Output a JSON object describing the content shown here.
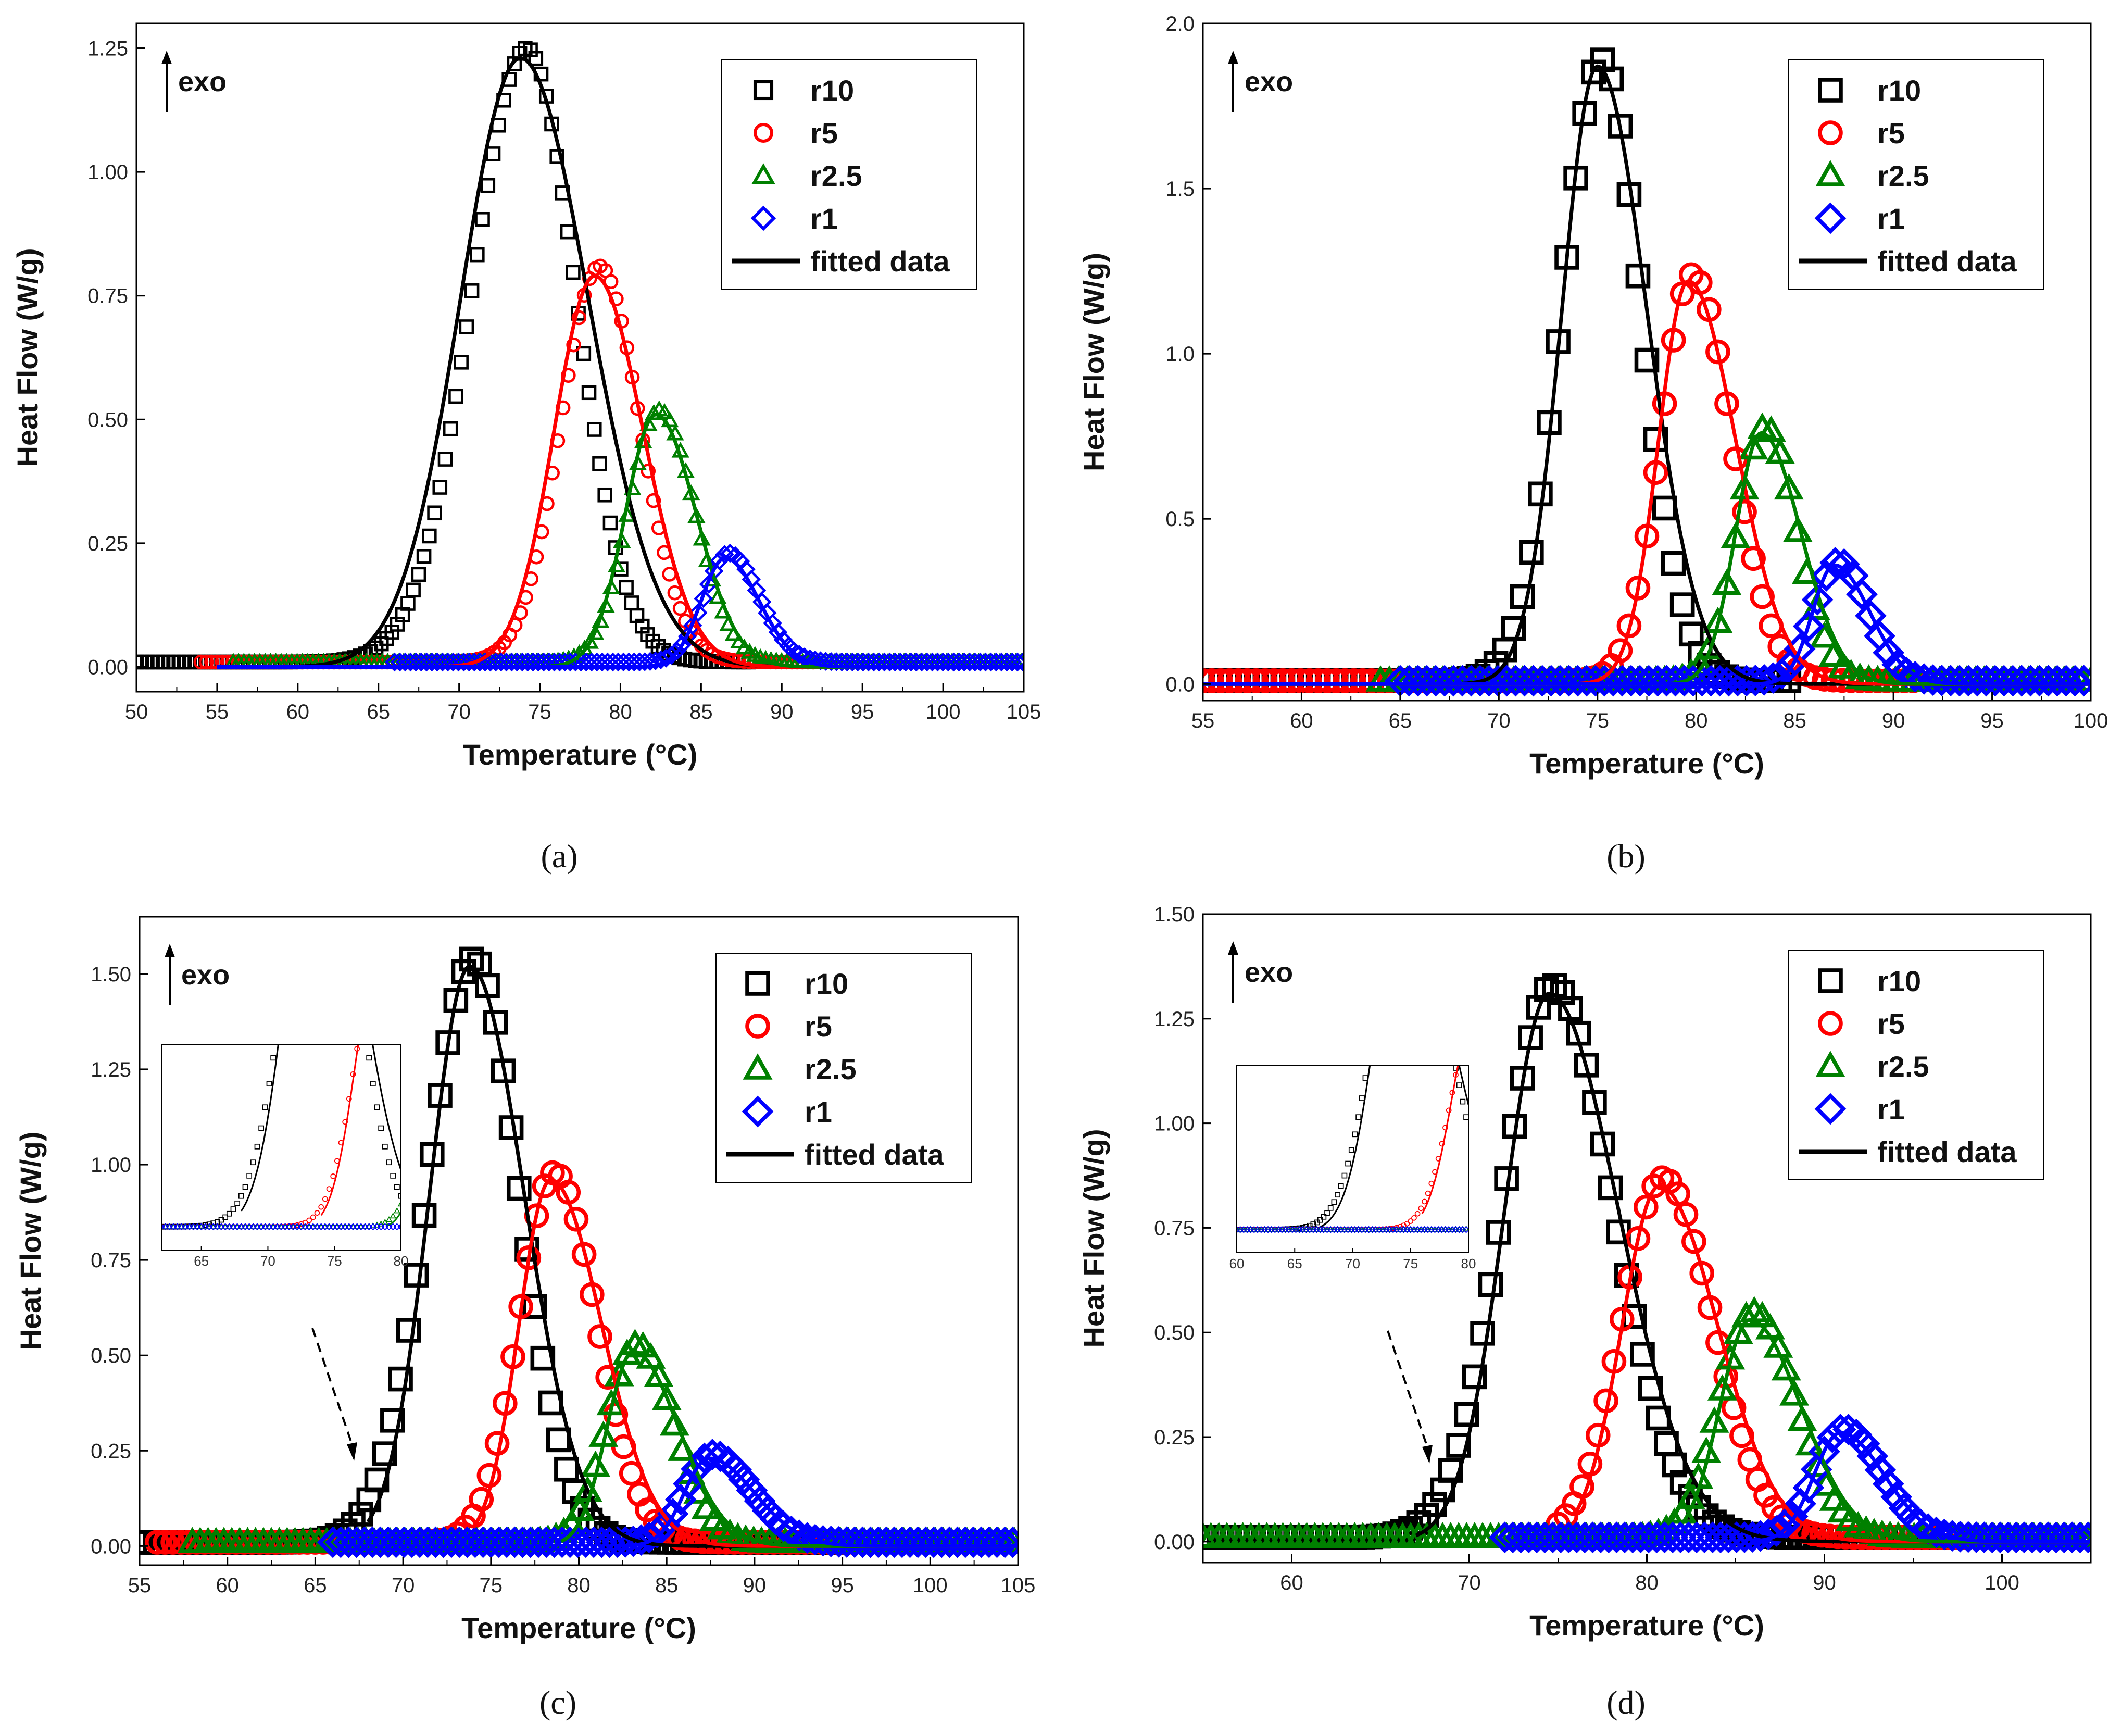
{
  "figure": {
    "panels": [
      "a",
      "b",
      "c",
      "d"
    ]
  },
  "chart_data": [
    {
      "id": "a",
      "type": "scatter",
      "caption": "(a)",
      "xlabel": "Temperature (°C)",
      "ylabel": "Heat Flow (W/g)",
      "xlim": [
        50,
        105
      ],
      "ylim": [
        -0.05,
        1.3
      ],
      "xticks": [
        50,
        55,
        60,
        65,
        70,
        75,
        80,
        85,
        90,
        95,
        100,
        105
      ],
      "yticks": [
        0.0,
        0.25,
        0.5,
        0.75,
        1.0,
        1.25
      ],
      "yticklabels": [
        "0.00",
        "0.25",
        "0.50",
        "0.75",
        "1.00",
        "1.25"
      ],
      "annotation": "exo",
      "legend": [
        "r10",
        "r5",
        "r2.5",
        "r1",
        "fitted data"
      ],
      "legend_position": "top-right",
      "marker_size": "small",
      "series": [
        {
          "name": "r10",
          "marker": "square",
          "color": "#000000",
          "peak_x": 74.2,
          "peak_y": 1.24,
          "sigma_left": 3.4,
          "sigma_right": 3.0,
          "x_range": [
            50,
            88
          ],
          "fit_peak_x": 73.8,
          "fit_peak_y": 1.23,
          "fit_sigma_left": 3.7,
          "fit_sigma_right": 4.2,
          "fit_x_range": [
            55,
            105
          ]
        },
        {
          "name": "r5",
          "marker": "circle",
          "color": "#ff0000",
          "peak_x": 78.7,
          "peak_y": 0.8,
          "sigma_left": 2.4,
          "sigma_right": 2.5,
          "x_range": [
            54,
            92
          ],
          "fit_peak_x": 78.4,
          "fit_peak_y": 0.79,
          "fit_sigma_left": 2.5,
          "fit_sigma_right": 3.0,
          "fit_x_range": [
            55,
            105
          ]
        },
        {
          "name": "r2.5",
          "marker": "triangle",
          "color": "#008000",
          "peak_x": 82.4,
          "peak_y": 0.51,
          "sigma_left": 1.9,
          "sigma_right": 2.2,
          "x_range": [
            56,
            105
          ],
          "fit_peak_x": 82.2,
          "fit_peak_y": 0.51,
          "fit_sigma_left": 1.9,
          "fit_sigma_right": 2.5,
          "fit_x_range": [
            55,
            105
          ]
        },
        {
          "name": "r1",
          "marker": "diamond",
          "color": "#0000ff",
          "peak_x": 86.7,
          "peak_y": 0.22,
          "sigma_left": 1.5,
          "sigma_right": 1.9,
          "x_range": [
            66,
            105
          ],
          "fit_peak_x": 86.5,
          "fit_peak_y": 0.22,
          "fit_sigma_left": 1.5,
          "fit_sigma_right": 2.1,
          "fit_x_range": [
            55,
            105
          ]
        }
      ]
    },
    {
      "id": "b",
      "type": "scatter",
      "caption": "(b)",
      "xlabel": "Temperature (°C)",
      "ylabel": "Heat Flow (W/g)",
      "xlim": [
        55,
        100
      ],
      "ylim": [
        -0.05,
        2.0
      ],
      "xticks": [
        55,
        60,
        65,
        70,
        75,
        80,
        85,
        90,
        95,
        100
      ],
      "yticks": [
        0.0,
        0.5,
        1.0,
        1.5,
        2.0
      ],
      "yticklabels": [
        "0.0",
        "0.5",
        "1.0",
        "1.5",
        "2.0"
      ],
      "annotation": "exo",
      "legend": [
        "r10",
        "r5",
        "r2.5",
        "r1",
        "fitted data"
      ],
      "legend_position": "top-right",
      "marker_size": "large",
      "series": [
        {
          "name": "r10",
          "marker": "square",
          "color": "#000000",
          "peak_x": 75.2,
          "peak_y": 1.88,
          "sigma_left": 2.0,
          "sigma_right": 2.0,
          "x_range": [
            55,
            85
          ],
          "fit_peak_x": 75.0,
          "fit_peak_y": 1.87,
          "fit_sigma_left": 1.8,
          "fit_sigma_right": 2.5,
          "fit_x_range": [
            55,
            100
          ]
        },
        {
          "name": "r5",
          "marker": "circle",
          "color": "#ff0000",
          "peak_x": 79.8,
          "peak_y": 1.23,
          "sigma_left": 1.6,
          "sigma_right": 2.0,
          "x_range": [
            55,
            91
          ],
          "fit_peak_x": 79.6,
          "fit_peak_y": 1.22,
          "fit_sigma_left": 1.5,
          "fit_sigma_right": 2.4,
          "fit_x_range": [
            55,
            100
          ]
        },
        {
          "name": "r2.5",
          "marker": "triangle",
          "color": "#008000",
          "peak_x": 83.5,
          "peak_y": 0.77,
          "sigma_left": 1.4,
          "sigma_right": 1.6,
          "x_range": [
            64,
            100
          ],
          "fit_peak_x": 83.3,
          "fit_peak_y": 0.76,
          "fit_sigma_left": 1.3,
          "fit_sigma_right": 2.0,
          "fit_x_range": [
            55,
            100
          ]
        },
        {
          "name": "r1",
          "marker": "diamond",
          "color": "#0000ff",
          "peak_x": 87.2,
          "peak_y": 0.36,
          "sigma_left": 1.2,
          "sigma_right": 1.5,
          "x_range": [
            65,
            100
          ],
          "fit_peak_x": 87.0,
          "fit_peak_y": 0.36,
          "fit_sigma_left": 1.1,
          "fit_sigma_right": 1.8,
          "fit_x_range": [
            55,
            100
          ]
        }
      ]
    },
    {
      "id": "c",
      "type": "scatter",
      "caption": "(c)",
      "xlabel": "Temperature (°C)",
      "ylabel": "Heat Flow (W/g)",
      "xlim": [
        55,
        105
      ],
      "ylim": [
        -0.05,
        1.65
      ],
      "xticks": [
        55,
        60,
        65,
        70,
        75,
        80,
        85,
        90,
        95,
        100,
        105
      ],
      "yticks": [
        0.0,
        0.25,
        0.5,
        0.75,
        1.0,
        1.25,
        1.5
      ],
      "yticklabels": [
        "0.00",
        "0.25",
        "0.50",
        "0.75",
        "1.00",
        "1.25",
        "1.50"
      ],
      "annotation": "exo",
      "legend": [
        "r10",
        "r5",
        "r2.5",
        "r1",
        "fitted data"
      ],
      "legend_position": "top-right",
      "marker_size": "large",
      "inset": {
        "xlim": [
          62,
          80
        ],
        "xticks": [
          65,
          70,
          75,
          80
        ]
      },
      "series": [
        {
          "name": "r10",
          "marker": "square",
          "color": "#000000",
          "peak_x": 74.0,
          "peak_y": 1.53,
          "sigma_left": 2.6,
          "sigma_right": 2.6,
          "x_range": [
            55,
            95
          ],
          "fit_peak_x": 73.8,
          "fit_peak_y": 1.52,
          "fit_sigma_left": 2.3,
          "fit_sigma_right": 3.1,
          "fit_x_range": [
            68,
            105
          ]
        },
        {
          "name": "r5",
          "marker": "circle",
          "color": "#ff0000",
          "peak_x": 78.6,
          "peak_y": 0.97,
          "sigma_left": 2.0,
          "sigma_right": 2.4,
          "x_range": [
            56,
            96
          ],
          "fit_peak_x": 78.4,
          "fit_peak_y": 0.96,
          "fit_sigma_left": 1.8,
          "fit_sigma_right": 2.9,
          "fit_x_range": [
            74,
            105
          ]
        },
        {
          "name": "r2.5",
          "marker": "triangle",
          "color": "#008000",
          "peak_x": 83.3,
          "peak_y": 0.52,
          "sigma_left": 1.7,
          "sigma_right": 2.1,
          "x_range": [
            58,
            105
          ],
          "fit_peak_x": 83.1,
          "fit_peak_y": 0.51,
          "fit_sigma_left": 1.5,
          "fit_sigma_right": 2.6,
          "fit_x_range": [
            79,
            105
          ]
        },
        {
          "name": "r1",
          "marker": "diamond",
          "color": "#0000ff",
          "peak_x": 87.6,
          "peak_y": 0.23,
          "sigma_left": 1.5,
          "sigma_right": 2.2,
          "x_range": [
            66,
            105
          ],
          "fit_peak_x": 87.4,
          "fit_peak_y": 0.23,
          "fit_sigma_left": 1.4,
          "fit_sigma_right": 2.6,
          "fit_x_range": [
            82,
            105
          ]
        }
      ]
    },
    {
      "id": "d",
      "type": "scatter",
      "caption": "(d)",
      "xlabel": "Temperature (°C)",
      "ylabel": "Heat Flow (W/g)",
      "xlim": [
        55,
        105
      ],
      "ylim": [
        -0.05,
        1.5
      ],
      "xticks": [
        60,
        70,
        80,
        90,
        100
      ],
      "yticks": [
        0.0,
        0.25,
        0.5,
        0.75,
        1.0,
        1.25,
        1.5
      ],
      "yticklabels": [
        "0.00",
        "0.25",
        "0.50",
        "0.75",
        "1.00",
        "1.25",
        "1.50"
      ],
      "annotation": "exo",
      "legend": [
        "r10",
        "r5",
        "r2.5",
        "r1",
        "fitted data"
      ],
      "legend_position": "top-right",
      "marker_size": "large",
      "inset": {
        "xlim": [
          60,
          80
        ],
        "xticks": [
          60,
          65,
          70,
          75,
          80
        ]
      },
      "series": [
        {
          "name": "r10",
          "marker": "square",
          "color": "#000000",
          "peak_x": 74.7,
          "peak_y": 1.32,
          "sigma_left": 2.8,
          "sigma_right": 3.4,
          "x_range": [
            55,
            97
          ],
          "fit_peak_x": 74.5,
          "fit_peak_y": 1.31,
          "fit_sigma_left": 2.5,
          "fit_sigma_right": 3.9,
          "fit_x_range": [
            67,
            105
          ]
        },
        {
          "name": "r5",
          "marker": "circle",
          "color": "#ff0000",
          "peak_x": 80.9,
          "peak_y": 0.86,
          "sigma_left": 2.3,
          "sigma_right": 2.8,
          "x_range": [
            75,
            98
          ],
          "fit_peak_x": 80.7,
          "fit_peak_y": 0.85,
          "fit_sigma_left": 2.1,
          "fit_sigma_right": 3.3,
          "fit_x_range": [
            76,
            105
          ]
        },
        {
          "name": "r2.5",
          "marker": "triangle",
          "color": "#008000",
          "peak_x": 86.0,
          "peak_y": 0.54,
          "sigma_left": 1.9,
          "sigma_right": 2.4,
          "x_range": [
            55,
            105
          ],
          "fit_peak_x": 85.8,
          "fit_peak_y": 0.53,
          "fit_sigma_left": 1.7,
          "fit_sigma_right": 2.9,
          "fit_x_range": [
            82,
            105
          ]
        },
        {
          "name": "r1",
          "marker": "diamond",
          "color": "#0000ff",
          "peak_x": 91.1,
          "peak_y": 0.26,
          "sigma_left": 1.6,
          "sigma_right": 2.1,
          "x_range": [
            72,
            105
          ],
          "fit_peak_x": 90.9,
          "fit_peak_y": 0.26,
          "fit_sigma_left": 1.5,
          "fit_sigma_right": 2.5,
          "fit_x_range": [
            86,
            105
          ]
        }
      ]
    }
  ]
}
